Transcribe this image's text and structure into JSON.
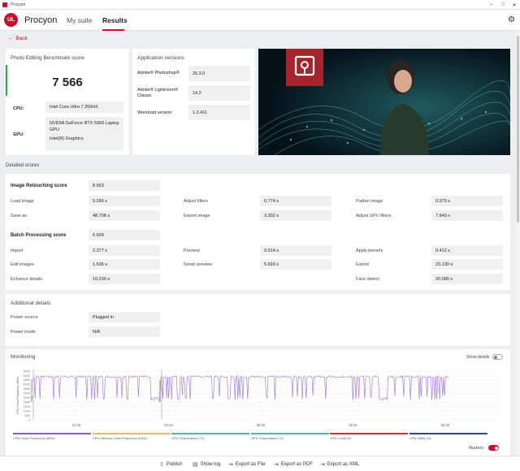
{
  "window": {
    "title": "Procyon",
    "minimize": "–",
    "maximize": "□",
    "close": "✕"
  },
  "header": {
    "logo": "UL",
    "brand": "Procyon",
    "tabs": [
      {
        "label": "My suite"
      },
      {
        "label": "Results"
      }
    ]
  },
  "back_label": "Back",
  "score_card": {
    "title": "Photo Editing Benchmark score",
    "score": "7 566",
    "cpu_label": "CPU:",
    "cpu": "Intel Core Ultra 7 255HX",
    "gpu_label": "GPU:",
    "gpu1": "NVIDIA GeForce RTX 5060 Laptop GPU",
    "gpu2": "Intel(R) Graphics"
  },
  "app_versions": {
    "title": "Application versions",
    "rows": [
      {
        "name": "Adobe® Photoshop®",
        "value": "26.3.0"
      },
      {
        "name": "Adobe® Lightroom® Classic",
        "value": "14.2"
      },
      {
        "name": "Workload version",
        "value": "1.2.411"
      }
    ]
  },
  "detailed": {
    "header": "Detailed scores",
    "retouch_title": "Image Retouching score",
    "retouch_score": "8 663",
    "retouch_rows": [
      [
        {
          "name": "Load image",
          "value": "0.266 s"
        },
        {
          "name": "Adjust filters",
          "value": "0.774 s"
        },
        {
          "name": "Flatten image",
          "value": "0.979 s"
        }
      ],
      [
        {
          "name": "Save as",
          "value": "48.708 s"
        },
        {
          "name": "Export image",
          "value": "3.302 s"
        },
        {
          "name": "Adjust GPU filters",
          "value": "7.649 s"
        }
      ]
    ],
    "batch_title": "Batch Processing score",
    "batch_score": "6 609",
    "batch_rows": [
      [
        {
          "name": "Import",
          "value": "2.377 s"
        },
        {
          "name": "Preview",
          "value": "0.514 s"
        },
        {
          "name": "Apply presets",
          "value": "0.412 s"
        }
      ],
      [
        {
          "name": "Edit images",
          "value": "1.536 s"
        },
        {
          "name": "Smart preview",
          "value": "5.693 s"
        },
        {
          "name": "Export",
          "value": "23.130 s"
        }
      ],
      [
        {
          "name": "Enhance details",
          "value": "10.230 s"
        },
        {
          "name": "",
          "value": ""
        },
        {
          "name": "Face detect",
          "value": "20.080 s"
        }
      ]
    ]
  },
  "additional": {
    "title": "Additional details",
    "rows": [
      {
        "name": "Power source",
        "value": "Plugged in"
      },
      {
        "name": "Power mode",
        "value": "N/A"
      }
    ]
  },
  "monitoring": {
    "title": "Monitoring",
    "show_details": "Show details",
    "y_label": "CPU Clock Frequency (MHz)",
    "y_ticks": [
      "5500",
      "5000",
      "4500",
      "4000",
      "3500",
      "3000",
      "2500",
      "2000",
      "1500",
      "1000",
      "500",
      "0"
    ],
    "x_ticks": [
      "01:40",
      "03:20",
      "05:00",
      "06:40",
      "08:20"
    ],
    "markers": [
      "Image Retouching",
      "Batch Processing"
    ],
    "legend": [
      {
        "name": "CPU Clock Frequency (MHz)",
        "color": "#8e5bc9"
      },
      {
        "name": "GPU Memory Clock Frequency (MHz)",
        "color": "#e3c34a"
      },
      {
        "name": "CPU Temperature (°C)",
        "color": "#3fbfb0"
      },
      {
        "name": "GPU Temperature (°C)",
        "color": "#3fbfb0"
      },
      {
        "name": "GPU Load (%)",
        "color": "#d32a3a"
      },
      {
        "name": "CPU Utility (%)",
        "color": "#2b4a8f"
      }
    ],
    "markers_label": "Markers",
    "line_color": "#9b6fd6"
  },
  "footer": {
    "buttons": [
      {
        "label": "Publish",
        "icon": "upload-icon"
      },
      {
        "label": "Show log",
        "icon": "document-icon"
      },
      {
        "label": "Export as File",
        "icon": "export-icon"
      },
      {
        "label": "Export as PDF",
        "icon": "export-icon"
      },
      {
        "label": "Export as XML",
        "icon": "export-icon"
      }
    ]
  },
  "colors": {
    "accent": "#c8102e",
    "score_green": "#2ea84a"
  }
}
